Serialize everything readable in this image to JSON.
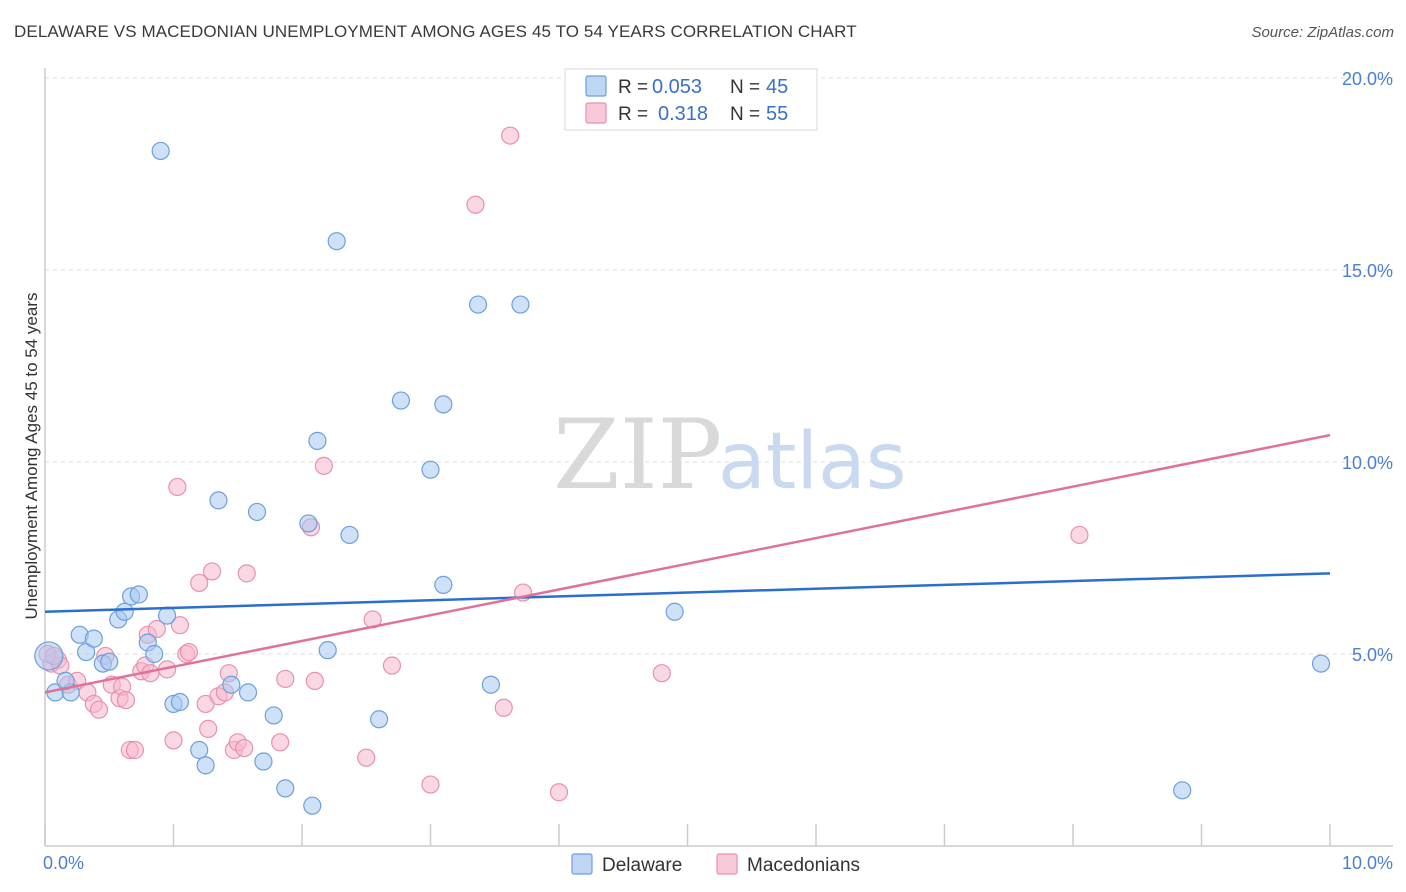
{
  "header": {
    "title": "DELAWARE VS MACEDONIAN UNEMPLOYMENT AMONG AGES 45 TO 54 YEARS CORRELATION CHART",
    "source": "Source: ZipAtlas.com"
  },
  "watermark": {
    "part1": "ZIP",
    "part2": "atlas"
  },
  "legend_top": {
    "rows": [
      {
        "r_label": "R =",
        "r_value": "0.053",
        "n_label": "N =",
        "n_value": "45",
        "color": "#a8c8f0"
      },
      {
        "r_label": "R =",
        "r_value": "0.318",
        "n_label": "N =",
        "n_value": "55",
        "color": "#f5b8cc"
      }
    ]
  },
  "legend_bottom": {
    "items": [
      "Delaware",
      "Macedonians"
    ]
  },
  "colors": {
    "delaware_fill": "#a8c8f0",
    "delaware_stroke": "#6d9fdc",
    "delaware_line": "#2a6fcf",
    "macedonian_fill": "#f5b8cc",
    "macedonian_stroke": "#e890b0",
    "macedonian_line": "#e0719a",
    "grid": "#dcdcdc",
    "tick_text": "#4a7fd0"
  },
  "chart_data": {
    "type": "scatter",
    "title": "DELAWARE VS MACEDONIAN UNEMPLOYMENT AMONG AGES 45 TO 54 YEARS CORRELATION CHART",
    "xlabel": "",
    "ylabel": "Unemployment Among Ages 45 to 54 years",
    "xlim": [
      0,
      10
    ],
    "ylim": [
      0,
      20
    ],
    "x_tick_labels": [
      "0.0%",
      "10.0%"
    ],
    "y_tick_labels": [
      "5.0%",
      "10.0%",
      "15.0%",
      "20.0%"
    ],
    "y_ticks": [
      5,
      10,
      15,
      20
    ],
    "grid": true,
    "series": [
      {
        "name": "Delaware",
        "r": 0.053,
        "n": 45,
        "trend": {
          "x": [
            0,
            10
          ],
          "y": [
            6.1,
            7.1
          ]
        },
        "points": [
          [
            0.03,
            4.95
          ],
          [
            0.08,
            4.0
          ],
          [
            0.2,
            4.0
          ],
          [
            0.16,
            4.3
          ],
          [
            0.27,
            5.5
          ],
          [
            0.32,
            5.05
          ],
          [
            0.38,
            5.4
          ],
          [
            0.45,
            4.75
          ],
          [
            0.5,
            4.8
          ],
          [
            0.57,
            5.9
          ],
          [
            0.62,
            6.1
          ],
          [
            0.67,
            6.5
          ],
          [
            0.73,
            6.55
          ],
          [
            0.8,
            5.3
          ],
          [
            0.85,
            5.0
          ],
          [
            0.95,
            6.0
          ],
          [
            1.0,
            3.7
          ],
          [
            1.05,
            3.75
          ],
          [
            1.2,
            2.5
          ],
          [
            1.25,
            2.1
          ],
          [
            1.35,
            9.0
          ],
          [
            1.45,
            4.2
          ],
          [
            1.58,
            4.0
          ],
          [
            1.65,
            8.7
          ],
          [
            1.7,
            2.2
          ],
          [
            1.78,
            3.4
          ],
          [
            1.87,
            1.5
          ],
          [
            2.08,
            1.05
          ],
          [
            2.05,
            8.4
          ],
          [
            2.12,
            10.55
          ],
          [
            2.2,
            5.1
          ],
          [
            2.27,
            15.75
          ],
          [
            2.37,
            8.1
          ],
          [
            2.6,
            3.3
          ],
          [
            2.77,
            11.6
          ],
          [
            3.0,
            9.8
          ],
          [
            3.1,
            11.5
          ],
          [
            3.1,
            6.8
          ],
          [
            3.37,
            14.1
          ],
          [
            3.47,
            4.2
          ],
          [
            3.7,
            14.1
          ],
          [
            0.9,
            18.1
          ],
          [
            4.9,
            6.1
          ],
          [
            8.85,
            1.45
          ],
          [
            9.93,
            4.75
          ]
        ]
      },
      {
        "name": "Macedonians",
        "r": 0.318,
        "n": 55,
        "trend": {
          "x": [
            0,
            10
          ],
          "y": [
            4.0,
            10.7
          ]
        },
        "points": [
          [
            0.05,
            4.75
          ],
          [
            0.1,
            4.85
          ],
          [
            0.12,
            4.7
          ],
          [
            0.18,
            4.2
          ],
          [
            0.25,
            4.3
          ],
          [
            0.33,
            4.0
          ],
          [
            0.38,
            3.7
          ],
          [
            0.42,
            3.55
          ],
          [
            0.47,
            4.95
          ],
          [
            0.52,
            4.2
          ],
          [
            0.58,
            3.85
          ],
          [
            0.6,
            4.15
          ],
          [
            0.63,
            3.8
          ],
          [
            0.66,
            2.5
          ],
          [
            0.7,
            2.5
          ],
          [
            0.75,
            4.55
          ],
          [
            0.78,
            4.7
          ],
          [
            0.8,
            5.5
          ],
          [
            0.82,
            4.5
          ],
          [
            0.87,
            5.65
          ],
          [
            0.95,
            4.6
          ],
          [
            1.0,
            2.75
          ],
          [
            1.03,
            9.35
          ],
          [
            1.05,
            5.75
          ],
          [
            1.1,
            5.0
          ],
          [
            1.12,
            5.05
          ],
          [
            1.2,
            6.85
          ],
          [
            1.25,
            3.7
          ],
          [
            1.27,
            3.05
          ],
          [
            1.3,
            7.15
          ],
          [
            1.35,
            3.9
          ],
          [
            1.4,
            4.0
          ],
          [
            1.43,
            4.5
          ],
          [
            1.47,
            2.5
          ],
          [
            1.5,
            2.7
          ],
          [
            1.55,
            2.55
          ],
          [
            1.57,
            7.1
          ],
          [
            1.83,
            2.7
          ],
          [
            1.87,
            4.35
          ],
          [
            2.07,
            8.3
          ],
          [
            2.1,
            4.3
          ],
          [
            2.17,
            9.9
          ],
          [
            2.5,
            2.3
          ],
          [
            2.55,
            5.9
          ],
          [
            2.7,
            4.7
          ],
          [
            3.0,
            1.6
          ],
          [
            3.35,
            16.7
          ],
          [
            3.57,
            3.6
          ],
          [
            3.62,
            18.5
          ],
          [
            3.72,
            6.6
          ],
          [
            4.0,
            1.4
          ],
          [
            4.8,
            4.5
          ],
          [
            8.05,
            8.1
          ],
          [
            0.02,
            5.0
          ],
          [
            0.07,
            4.95
          ]
        ]
      }
    ]
  }
}
